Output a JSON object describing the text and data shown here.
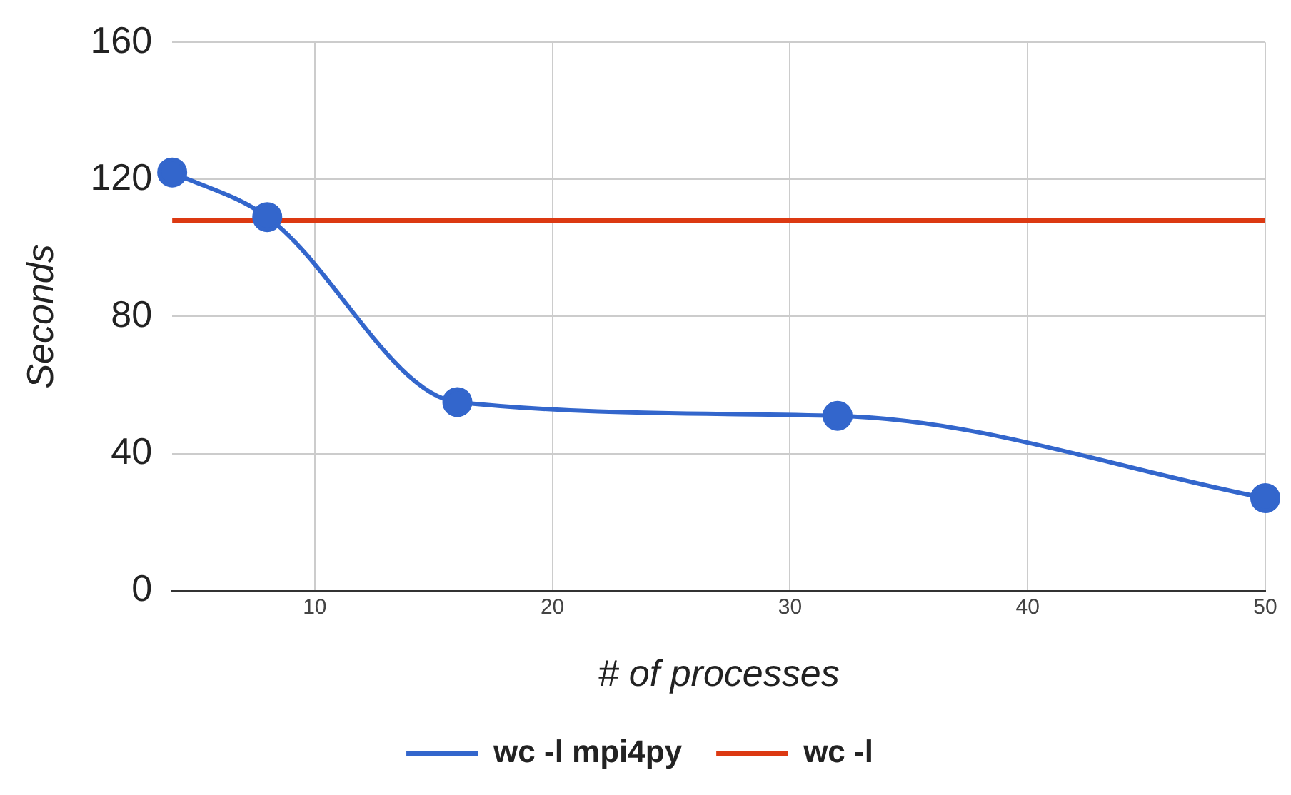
{
  "chart_data": {
    "type": "line",
    "xlabel": "# of processes",
    "ylabel": "Seconds",
    "xlim": [
      4,
      50
    ],
    "xticks": [
      10,
      20,
      30,
      40,
      50
    ],
    "ylim": [
      0,
      160
    ],
    "yticks": [
      0,
      40,
      80,
      120,
      160
    ],
    "grid": true,
    "legend": "bottom",
    "marker": "circle",
    "line_style": "solid",
    "series": [
      {
        "name": "wc -l mpi4py",
        "color": "#3366cc",
        "x": [
          4,
          8,
          16,
          32,
          50
        ],
        "values": [
          122,
          109,
          55,
          51,
          27
        ]
      },
      {
        "name": "wc -l",
        "color": "#dc3912",
        "x": [
          4,
          50
        ],
        "values": [
          108,
          108
        ],
        "marker": "none"
      }
    ]
  }
}
